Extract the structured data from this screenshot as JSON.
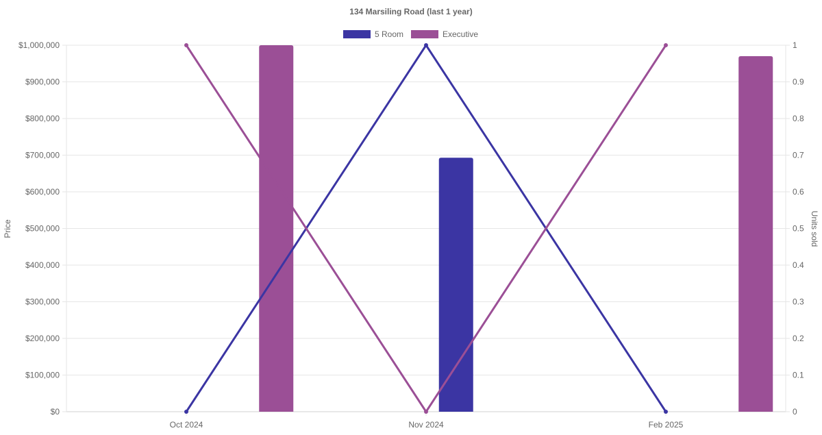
{
  "chart_data": {
    "type": "bar",
    "title": "134 Marsiling Road (last 1 year)",
    "categories": [
      "Oct 2024",
      "Nov 2024",
      "Feb 2025"
    ],
    "y_left": {
      "label": "Price",
      "ticks": [
        "$0",
        "$100,000",
        "$200,000",
        "$300,000",
        "$400,000",
        "$500,000",
        "$600,000",
        "$700,000",
        "$800,000",
        "$900,000",
        "$1,000,000"
      ],
      "range": [
        0,
        1000000
      ]
    },
    "y_right": {
      "label": "Units sold",
      "ticks": [
        "0",
        "0.1",
        "0.2",
        "0.3",
        "0.4",
        "0.5",
        "0.6",
        "0.7",
        "0.8",
        "0.9",
        "1"
      ],
      "range": [
        0,
        1
      ]
    },
    "legend": {
      "placement": "top-center",
      "items": [
        {
          "label": "5 Room",
          "color": "#3b35a3"
        },
        {
          "label": "Executive",
          "color": "#9b4f96"
        }
      ]
    },
    "series": [
      {
        "name": "5 Room",
        "color": "#3b35a3",
        "price": [
          null,
          693000,
          null
        ],
        "units_sold": [
          0,
          1,
          0
        ]
      },
      {
        "name": "Executive",
        "color": "#9b4f96",
        "price": [
          1000000,
          null,
          970000
        ],
        "units_sold": [
          1,
          0,
          1
        ]
      }
    ],
    "grid": true
  }
}
